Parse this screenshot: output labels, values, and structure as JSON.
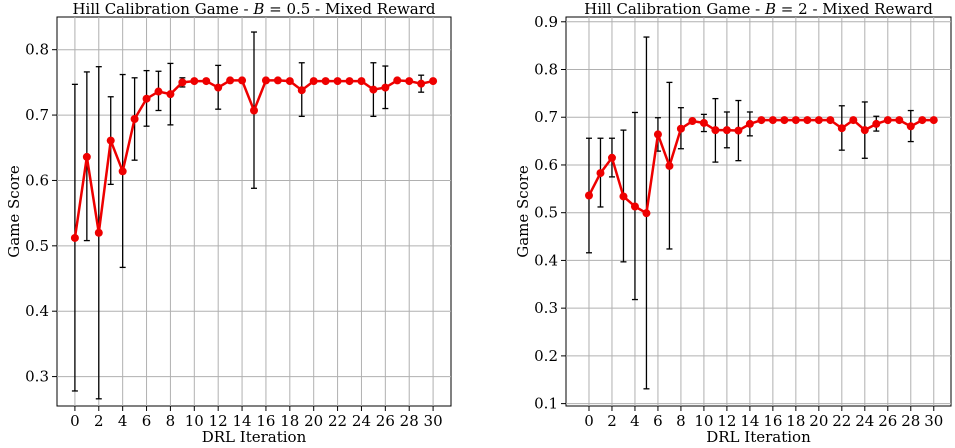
{
  "chart_data": [
    {
      "type": "line",
      "title": "Hill Calibration Game - B = 0.5 - Mixed Reward",
      "title_parts": {
        "prefix": "Hill Calibration Game - ",
        "variable": "B",
        "suffix": " = 0.5 - Mixed Reward"
      },
      "xlabel": "DRL Iteration",
      "ylabel": "Game Score",
      "xlim": [
        -1.5,
        31.5
      ],
      "ylim": [
        0.255,
        0.85
      ],
      "xticks": [
        0,
        2,
        4,
        6,
        8,
        10,
        12,
        14,
        16,
        18,
        20,
        22,
        24,
        26,
        28,
        30
      ],
      "yticks": [
        0.3,
        0.4,
        0.5,
        0.6,
        0.7,
        0.8
      ],
      "yticklabels": [
        "0.3",
        "0.4",
        "0.5",
        "0.6",
        "0.7",
        "0.8"
      ],
      "grid": true,
      "color": "#ee0000",
      "series": [
        {
          "x": [
            0,
            1,
            2,
            3,
            4,
            5,
            6,
            7,
            8,
            9,
            10,
            11,
            12,
            13,
            14,
            15,
            16,
            17,
            18,
            19,
            20,
            21,
            22,
            23,
            24,
            25,
            26,
            27,
            28,
            29,
            30
          ],
          "values": [
            0.512,
            0.636,
            0.52,
            0.661,
            0.614,
            0.694,
            0.725,
            0.736,
            0.732,
            0.75,
            0.752,
            0.752,
            0.742,
            0.753,
            0.753,
            0.707,
            0.753,
            0.753,
            0.752,
            0.738,
            0.752,
            0.752,
            0.752,
            0.752,
            0.752,
            0.739,
            0.742,
            0.753,
            0.752,
            0.748,
            0.752
          ],
          "lower": [
            0.278,
            0.508,
            0.266,
            0.594,
            0.467,
            0.631,
            0.683,
            0.707,
            0.685,
            0.743,
            0.752,
            0.752,
            0.709,
            0.753,
            0.753,
            0.588,
            0.753,
            0.753,
            0.752,
            0.698,
            0.752,
            0.752,
            0.752,
            0.752,
            0.752,
            0.698,
            0.71,
            0.753,
            0.752,
            0.735,
            0.752
          ],
          "upper": [
            0.747,
            0.766,
            0.774,
            0.728,
            0.762,
            0.757,
            0.768,
            0.767,
            0.779,
            0.757,
            0.752,
            0.752,
            0.776,
            0.753,
            0.753,
            0.827,
            0.753,
            0.753,
            0.752,
            0.78,
            0.752,
            0.752,
            0.752,
            0.752,
            0.752,
            0.78,
            0.775,
            0.753,
            0.752,
            0.761,
            0.752
          ]
        }
      ]
    },
    {
      "type": "line",
      "title": "Hill Calibration Game - B = 2 - Mixed Reward",
      "title_parts": {
        "prefix": "Hill Calibration Game - ",
        "variable": "B",
        "suffix": " = 2 - Mixed Reward"
      },
      "xlabel": "DRL Iteration",
      "ylabel": "Game Score",
      "xlim": [
        -2,
        31.5
      ],
      "ylim": [
        0.095,
        0.91
      ],
      "xticks": [
        0,
        2,
        4,
        6,
        8,
        10,
        12,
        14,
        16,
        18,
        20,
        22,
        24,
        26,
        28,
        30
      ],
      "yticks": [
        0.1,
        0.2,
        0.3,
        0.4,
        0.5,
        0.6,
        0.7,
        0.8,
        0.9
      ],
      "yticklabels": [
        "0.1",
        "0.2",
        "0.3",
        "0.4",
        "0.5",
        "0.6",
        "0.7",
        "0.8",
        "0.9"
      ],
      "grid": true,
      "color": "#ee0000",
      "series": [
        {
          "x": [
            0,
            1,
            2,
            3,
            4,
            5,
            6,
            7,
            8,
            9,
            10,
            11,
            12,
            13,
            14,
            15,
            16,
            17,
            18,
            19,
            20,
            21,
            22,
            23,
            24,
            25,
            26,
            27,
            28,
            29,
            30
          ],
          "values": [
            0.536,
            0.583,
            0.615,
            0.534,
            0.513,
            0.499,
            0.664,
            0.598,
            0.676,
            0.692,
            0.688,
            0.673,
            0.673,
            0.672,
            0.686,
            0.694,
            0.694,
            0.694,
            0.694,
            0.694,
            0.694,
            0.694,
            0.677,
            0.694,
            0.673,
            0.686,
            0.694,
            0.694,
            0.681,
            0.694,
            0.694
          ],
          "lower": [
            0.416,
            0.512,
            0.575,
            0.397,
            0.318,
            0.131,
            0.629,
            0.424,
            0.634,
            0.692,
            0.67,
            0.606,
            0.636,
            0.609,
            0.661,
            0.694,
            0.694,
            0.694,
            0.694,
            0.694,
            0.694,
            0.694,
            0.631,
            0.694,
            0.614,
            0.671,
            0.694,
            0.694,
            0.649,
            0.694,
            0.694
          ],
          "upper": [
            0.656,
            0.656,
            0.656,
            0.673,
            0.71,
            0.868,
            0.699,
            0.773,
            0.72,
            0.692,
            0.706,
            0.739,
            0.711,
            0.735,
            0.711,
            0.694,
            0.694,
            0.694,
            0.694,
            0.694,
            0.694,
            0.694,
            0.724,
            0.694,
            0.732,
            0.702,
            0.694,
            0.694,
            0.714,
            0.694,
            0.694
          ]
        }
      ]
    }
  ]
}
